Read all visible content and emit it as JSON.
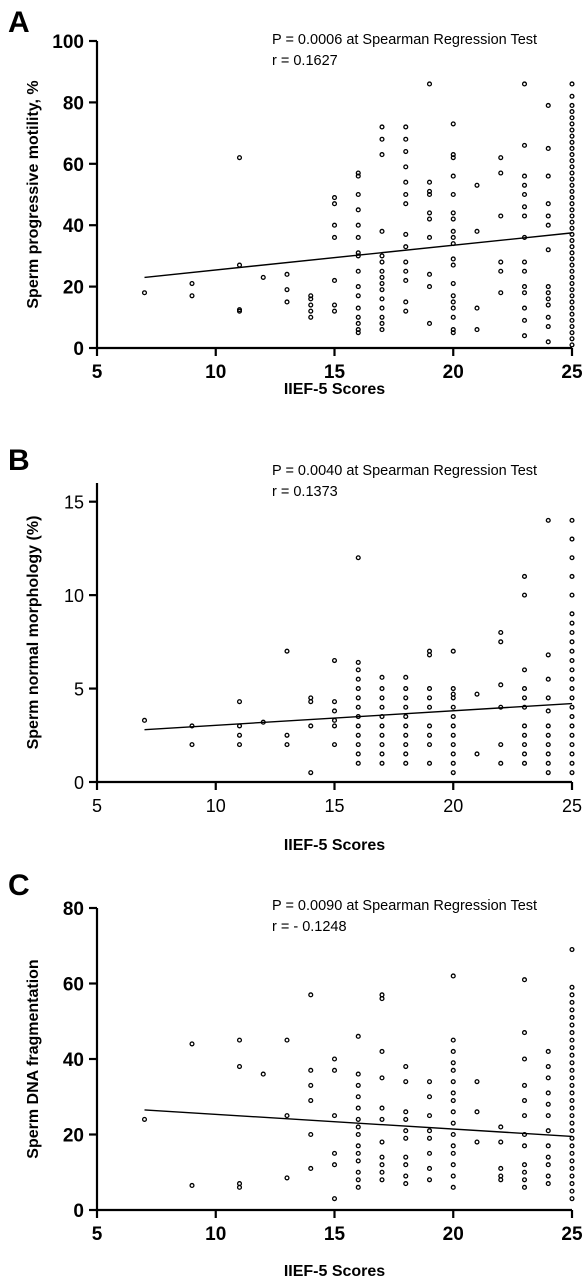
{
  "chart_data": [
    {
      "panel": "A",
      "type": "scatter",
      "annotation_lines": [
        "P = 0.0006 at Spearman Regression Test",
        "r = 0.1627"
      ],
      "xlabel": "IIEF-5 Scores",
      "ylabel": "Sperm progressive motility, %",
      "xlim": [
        5,
        25
      ],
      "ylim": [
        0,
        100
      ],
      "xticks": [
        5,
        10,
        15,
        20,
        25
      ],
      "yticks": [
        0,
        20,
        40,
        60,
        80,
        100
      ],
      "fit_line": {
        "x": [
          7,
          25
        ],
        "y": [
          23,
          37.5
        ]
      },
      "points": [
        {
          "x": 7,
          "y": [
            18
          ]
        },
        {
          "x": 9,
          "y": [
            17,
            21
          ]
        },
        {
          "x": 11,
          "y": [
            62,
            27,
            12,
            12.5
          ]
        },
        {
          "x": 12,
          "y": [
            23
          ]
        },
        {
          "x": 13,
          "y": [
            24,
            19,
            15
          ]
        },
        {
          "x": 14,
          "y": [
            17,
            16,
            14,
            12,
            10
          ]
        },
        {
          "x": 15,
          "y": [
            49,
            47,
            40,
            36,
            22,
            14,
            12
          ]
        },
        {
          "x": 16,
          "y": [
            57,
            56,
            50,
            45,
            40,
            36,
            31,
            30,
            25,
            20,
            17,
            13,
            10,
            8,
            6,
            5
          ]
        },
        {
          "x": 17,
          "y": [
            72,
            68,
            63,
            38,
            30,
            28,
            25,
            23,
            21,
            19,
            16,
            13,
            10,
            8,
            6
          ]
        },
        {
          "x": 18,
          "y": [
            72,
            68,
            64,
            59,
            54,
            50,
            47,
            37,
            33,
            28,
            25,
            22,
            15,
            12
          ]
        },
        {
          "x": 19,
          "y": [
            86,
            54,
            51,
            50,
            44,
            42,
            36,
            24,
            20,
            8
          ]
        },
        {
          "x": 20,
          "y": [
            73,
            63,
            62,
            56,
            50,
            44,
            42,
            38,
            36,
            34,
            29,
            27,
            21,
            17,
            15,
            13,
            10,
            6,
            5
          ]
        },
        {
          "x": 21,
          "y": [
            53,
            38,
            13,
            6
          ]
        },
        {
          "x": 22,
          "y": [
            62,
            57,
            43,
            28,
            25,
            18
          ]
        },
        {
          "x": 23,
          "y": [
            86,
            66,
            56,
            53,
            50,
            46,
            43,
            36,
            28,
            25,
            20,
            18,
            13,
            9,
            4
          ]
        },
        {
          "x": 24,
          "y": [
            79,
            65,
            56,
            47,
            43,
            40,
            32,
            20,
            18,
            16,
            14,
            10,
            7,
            2
          ]
        },
        {
          "x": 25,
          "y": [
            86,
            82,
            79,
            77,
            75,
            73,
            71,
            69,
            67,
            65,
            63,
            61,
            59,
            57,
            55,
            53,
            51,
            49,
            47,
            45,
            43,
            41,
            39,
            37,
            35,
            33,
            31,
            29,
            27,
            25,
            23,
            21,
            19,
            17,
            15,
            13,
            11,
            9,
            7,
            5,
            3,
            1
          ]
        }
      ]
    },
    {
      "panel": "B",
      "type": "scatter",
      "annotation_lines": [
        "P = 0.0040 at Spearman Regression Test",
        "r = 0.1373"
      ],
      "xlabel": "IIEF-5 Scores",
      "ylabel": "Sperm normal morphology (%)",
      "xlim": [
        5,
        25
      ],
      "ylim": [
        0,
        16
      ],
      "xticks": [
        5,
        10,
        15,
        20,
        25
      ],
      "yticks": [
        0,
        5,
        10,
        15
      ],
      "fit_line": {
        "x": [
          7,
          25
        ],
        "y": [
          2.8,
          4.2
        ]
      },
      "points": [
        {
          "x": 7,
          "y": [
            3.3
          ]
        },
        {
          "x": 9,
          "y": [
            3.0,
            2.0
          ]
        },
        {
          "x": 11,
          "y": [
            4.3,
            3.0,
            2.5,
            2.0
          ]
        },
        {
          "x": 12,
          "y": [
            3.2
          ]
        },
        {
          "x": 13,
          "y": [
            7.0,
            2.5,
            2.0
          ]
        },
        {
          "x": 14,
          "y": [
            4.5,
            4.3,
            3.0,
            0.5
          ]
        },
        {
          "x": 15,
          "y": [
            6.5,
            4.3,
            3.8,
            3.3,
            3.0,
            2.0
          ]
        },
        {
          "x": 16,
          "y": [
            12.0,
            6.4,
            6.0,
            5.5,
            5.0,
            4.5,
            4.0,
            3.5,
            3.0,
            2.5,
            2.0,
            1.5,
            1.0
          ]
        },
        {
          "x": 17,
          "y": [
            5.6,
            5.0,
            4.5,
            4.0,
            3.5,
            3.0,
            2.5,
            2.0,
            1.5,
            1.0
          ]
        },
        {
          "x": 18,
          "y": [
            5.6,
            5.0,
            4.5,
            4.0,
            3.5,
            3.0,
            2.5,
            2.0,
            1.5,
            1.0
          ]
        },
        {
          "x": 19,
          "y": [
            7.0,
            6.8,
            5.0,
            4.5,
            4.0,
            3.0,
            2.5,
            2.0,
            1.0
          ]
        },
        {
          "x": 20,
          "y": [
            7.0,
            5.0,
            4.7,
            4.5,
            4.0,
            3.5,
            3.0,
            2.5,
            2.0,
            1.5,
            1.0,
            0.5
          ]
        },
        {
          "x": 21,
          "y": [
            4.7,
            1.5
          ]
        },
        {
          "x": 22,
          "y": [
            8.0,
            7.5,
            5.2,
            4.0,
            2.0,
            1.0
          ]
        },
        {
          "x": 23,
          "y": [
            11.0,
            10.0,
            6.0,
            5.0,
            4.5,
            4.0,
            3.0,
            2.5,
            2.0,
            1.5,
            1.0
          ]
        },
        {
          "x": 24,
          "y": [
            14.0,
            6.8,
            5.5,
            4.5,
            3.8,
            3.0,
            2.5,
            2.0,
            1.5,
            1.0,
            0.5
          ]
        },
        {
          "x": 25,
          "y": [
            14.0,
            13.0,
            12.0,
            11.0,
            10.0,
            9.0,
            8.5,
            8.0,
            7.5,
            7.0,
            6.5,
            6.0,
            5.5,
            5.0,
            4.5,
            4.0,
            3.5,
            3.0,
            2.5,
            2.0,
            1.5,
            1.0,
            0.5
          ]
        }
      ]
    },
    {
      "panel": "C",
      "type": "scatter",
      "annotation_lines": [
        "P = 0.0090 at Spearman Regression Test",
        "r = - 0.1248"
      ],
      "xlabel": "IIEF-5 Scores",
      "ylabel": "Sperm DNA fragmentation",
      "xlim": [
        5,
        25
      ],
      "ylim": [
        0,
        80
      ],
      "xticks": [
        5,
        10,
        15,
        20,
        25
      ],
      "yticks": [
        0,
        20,
        40,
        60,
        80
      ],
      "fit_line": {
        "x": [
          7,
          25
        ],
        "y": [
          26.5,
          19.5
        ]
      },
      "points": [
        {
          "x": 7,
          "y": [
            24
          ]
        },
        {
          "x": 9,
          "y": [
            44,
            6.5
          ]
        },
        {
          "x": 11,
          "y": [
            45,
            38,
            7,
            6
          ]
        },
        {
          "x": 12,
          "y": [
            36
          ]
        },
        {
          "x": 13,
          "y": [
            45,
            25,
            8.5
          ]
        },
        {
          "x": 14,
          "y": [
            57,
            37,
            33,
            29,
            20,
            11
          ]
        },
        {
          "x": 15,
          "y": [
            40,
            37,
            25,
            15,
            12,
            3
          ]
        },
        {
          "x": 16,
          "y": [
            46,
            36,
            33,
            30,
            27,
            24,
            22,
            20,
            17,
            15,
            13,
            10,
            8,
            6
          ]
        },
        {
          "x": 17,
          "y": [
            57,
            56,
            42,
            35,
            27,
            24,
            18,
            14,
            12,
            10,
            8
          ]
        },
        {
          "x": 18,
          "y": [
            38,
            34,
            26,
            24,
            21,
            19,
            14,
            12,
            9,
            7
          ]
        },
        {
          "x": 19,
          "y": [
            34,
            30,
            25,
            21,
            19,
            15,
            11,
            8
          ]
        },
        {
          "x": 20,
          "y": [
            62,
            45,
            42,
            39,
            37,
            34,
            31,
            29,
            26,
            23,
            20,
            17,
            15,
            12,
            9,
            6
          ]
        },
        {
          "x": 21,
          "y": [
            34,
            26,
            18
          ]
        },
        {
          "x": 22,
          "y": [
            22,
            18,
            11,
            9,
            8
          ]
        },
        {
          "x": 23,
          "y": [
            61,
            47,
            40,
            33,
            29,
            25,
            20,
            17,
            12,
            10,
            8,
            6
          ]
        },
        {
          "x": 24,
          "y": [
            42,
            38,
            35,
            31,
            28,
            25,
            21,
            17,
            14,
            12,
            9,
            7
          ]
        },
        {
          "x": 25,
          "y": [
            69,
            59,
            57,
            55,
            53,
            51,
            49,
            47,
            45,
            43,
            41,
            39,
            37,
            35,
            33,
            31,
            29,
            27,
            25,
            23,
            21,
            19,
            17,
            15,
            13,
            11,
            9,
            7,
            5,
            3
          ]
        }
      ]
    }
  ]
}
